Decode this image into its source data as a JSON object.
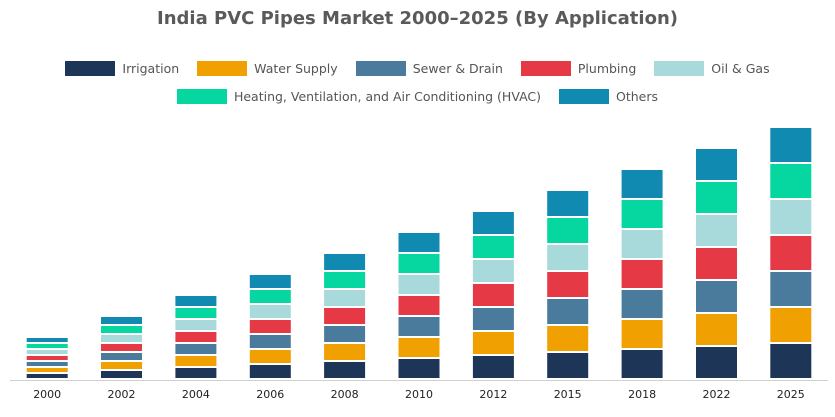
{
  "chart_data": {
    "type": "bar",
    "stacked": true,
    "title": "India PVC Pipes Market 2000–2025 (By Application)",
    "xlabel": "",
    "ylabel": "",
    "grid": false,
    "legend_position": "top",
    "categories": [
      "2000",
      "2002",
      "2004",
      "2006",
      "2008",
      "2010",
      "2012",
      "2015",
      "2018",
      "2022",
      "2025"
    ],
    "series": [
      {
        "name": "Irrigation",
        "color": "#1d3557",
        "values": [
          6,
          9,
          12,
          15,
          18,
          21,
          24,
          27,
          30,
          33,
          36
        ]
      },
      {
        "name": "Water Supply",
        "color": "#f0a000",
        "values": [
          6,
          9,
          12,
          15,
          18,
          21,
          24,
          27,
          30,
          33,
          36
        ]
      },
      {
        "name": "Sewer & Drain",
        "color": "#4a7a9c",
        "values": [
          6,
          9,
          12,
          15,
          18,
          21,
          24,
          27,
          30,
          33,
          36
        ]
      },
      {
        "name": "Plumbing",
        "color": "#e63946",
        "values": [
          6,
          9,
          12,
          15,
          18,
          21,
          24,
          27,
          30,
          33,
          36
        ]
      },
      {
        "name": "Oil & Gas",
        "color": "#a8dadc",
        "values": [
          6,
          9,
          12,
          15,
          18,
          21,
          24,
          27,
          30,
          33,
          36
        ]
      },
      {
        "name": "Heating, Ventilation, and Air Conditioning (HVAC)",
        "color": "#06d6a0",
        "values": [
          6,
          9,
          12,
          15,
          18,
          21,
          24,
          27,
          30,
          33,
          36
        ]
      },
      {
        "name": "Others",
        "color": "#118ab2",
        "values": [
          6,
          9,
          12,
          15,
          18,
          21,
          24,
          27,
          30,
          33,
          36
        ]
      }
    ],
    "ylim": [
      0,
      252
    ]
  }
}
